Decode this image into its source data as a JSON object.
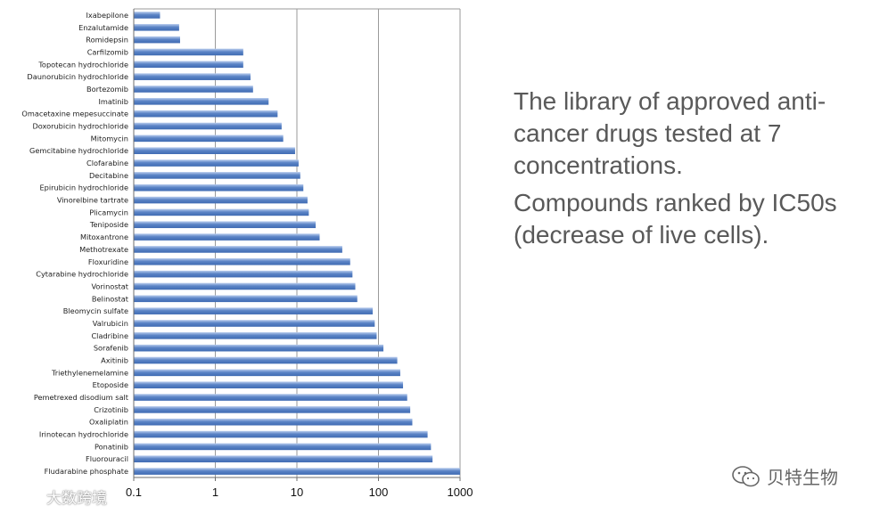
{
  "chart_data": {
    "type": "bar",
    "orientation": "horizontal",
    "x_scale": "log",
    "xlim": [
      0.1,
      1000
    ],
    "x_ticks": [
      "0.1",
      "1",
      "10",
      "100",
      "1000"
    ],
    "grid": "vertical major gridlines",
    "bar_color": "#5b84c6",
    "categories": [
      "Ixabepilone",
      "Enzalutamide",
      "Romidepsin",
      "Carfilzomib",
      "Topotecan hydrochloride",
      "Daunorubicin hydrochloride",
      "Bortezomib",
      "Imatinib",
      "Omacetaxine mepesuccinate",
      "Doxorubicin hydrochloride",
      "Mitomycin",
      "Gemcitabine hydrochloride",
      "Clofarabine",
      "Decitabine",
      "Epirubicin hydrochloride",
      "Vinorelbine tartrate",
      "Plicamycin",
      "Teniposide",
      "Mitoxantrone",
      "Methotrexate",
      "Floxuridine",
      "Cytarabine hydrochloride",
      "Vorinostat",
      "Belinostat",
      "Bleomycin sulfate",
      "Valrubicin",
      "Cladribine",
      "Sorafenib",
      "Axitinib",
      "Triethylenemelamine",
      "Etoposide",
      "Pemetrexed disodium salt",
      "Crizotinib",
      "Oxaliplatin",
      "Irinotecan hydrochloride",
      "Ponatinib",
      "Fluorouracil",
      "Fludarabine phosphate"
    ],
    "values": [
      0.21,
      0.36,
      0.37,
      2.2,
      2.2,
      2.7,
      2.9,
      4.5,
      5.8,
      6.5,
      6.8,
      9.5,
      10.5,
      11,
      12,
      13.5,
      14,
      17,
      19,
      36,
      45,
      48,
      52,
      55,
      85,
      90,
      95,
      115,
      170,
      185,
      200,
      225,
      245,
      260,
      400,
      440,
      460,
      1000
    ]
  },
  "side_text": {
    "line1": "The library of approved anti-cancer drugs tested at 7 concentrations.",
    "line2": "Compounds ranked by IC50s (decrease of live cells)."
  },
  "watermarks": {
    "right_text": "贝特生物",
    "right_icon": "wechat-icon",
    "left_text": "大数跨境",
    "left_icon": "weibo-icon"
  }
}
